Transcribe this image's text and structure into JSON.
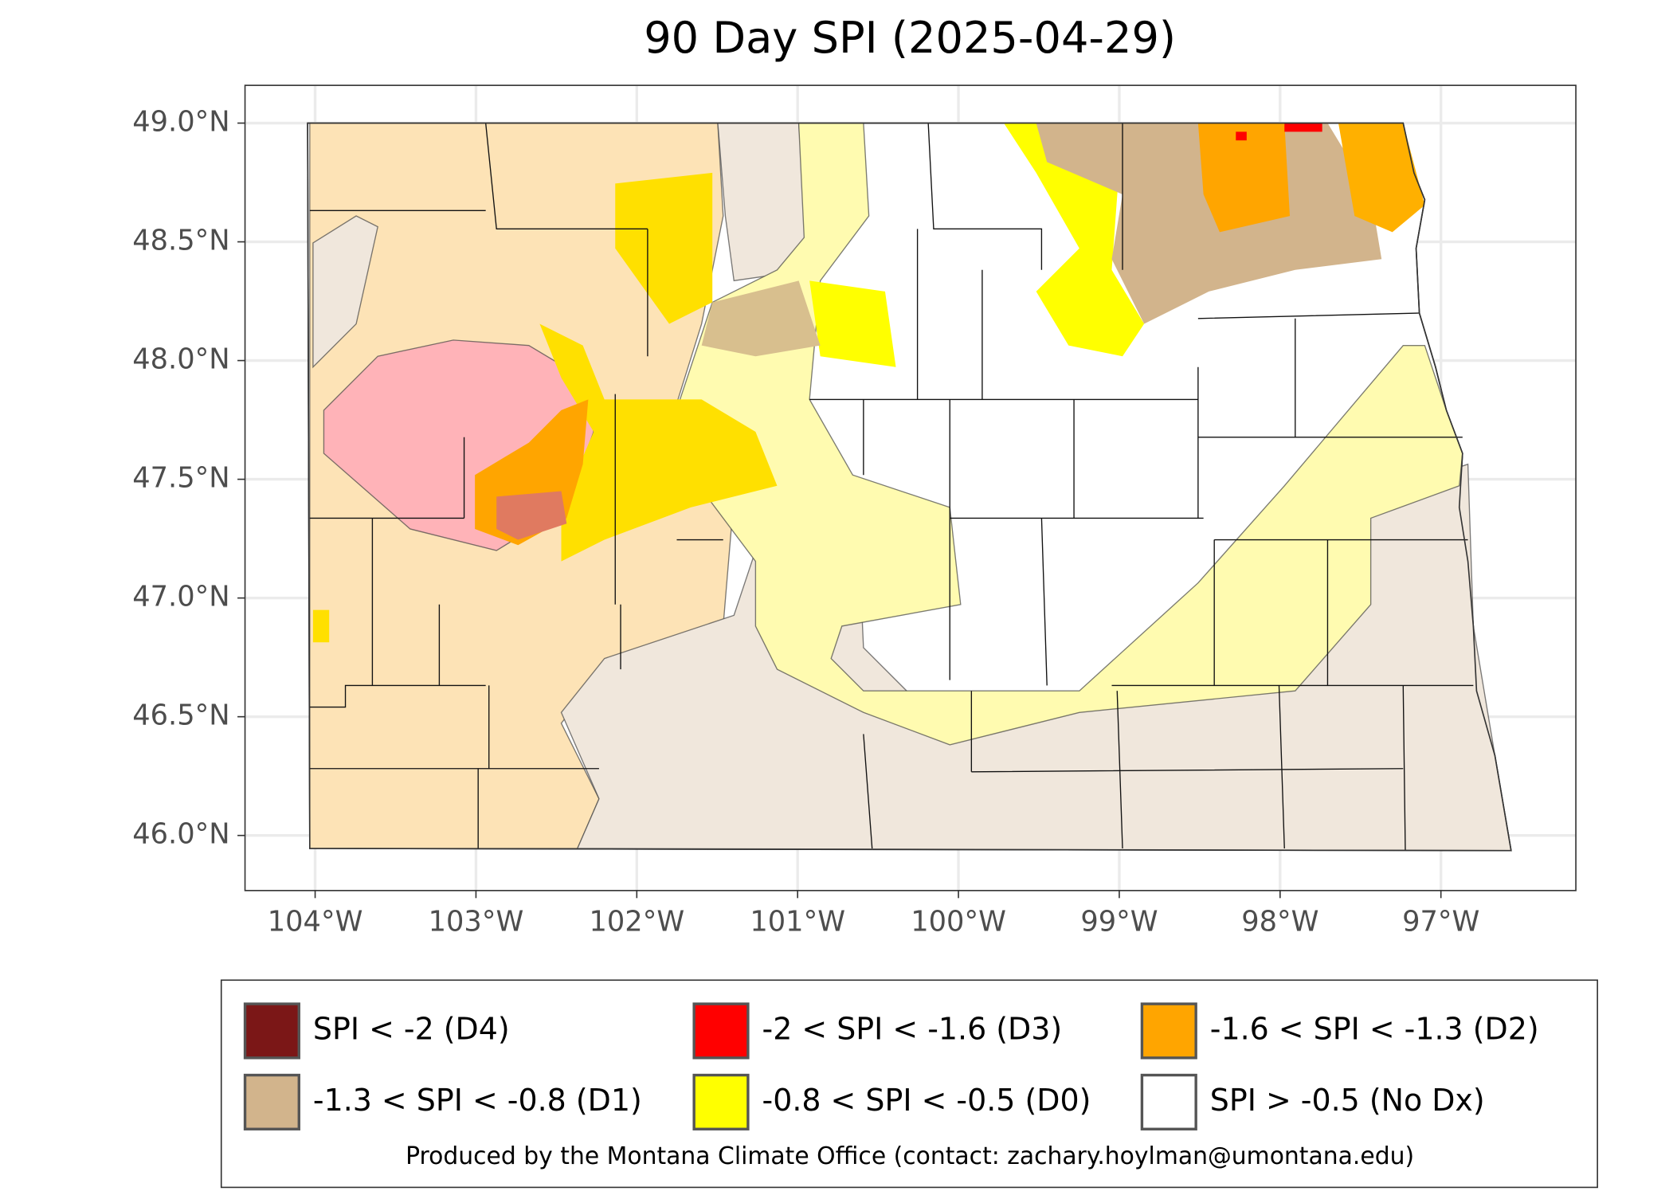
{
  "chart_data": {
    "type": "map",
    "title": "90 Day SPI (2025-04-29)",
    "xlim": [
      -104.436,
      -96.161
    ],
    "ylim": [
      45.768,
      49.159
    ],
    "xticks": [
      {
        "value": -104,
        "label": "104°W"
      },
      {
        "value": -103,
        "label": "103°W"
      },
      {
        "value": -102,
        "label": "102°W"
      },
      {
        "value": -101,
        "label": "101°W"
      },
      {
        "value": -100,
        "label": "100°W"
      },
      {
        "value": -99,
        "label": "99°W"
      },
      {
        "value": -98,
        "label": "98°W"
      },
      {
        "value": -97,
        "label": "97°W"
      }
    ],
    "yticks": [
      {
        "value": 46.0,
        "label": "46.0°N"
      },
      {
        "value": 46.5,
        "label": "46.5°N"
      },
      {
        "value": 47.0,
        "label": "47.0°N"
      },
      {
        "value": 47.5,
        "label": "47.5°N"
      },
      {
        "value": 48.0,
        "label": "48.0°N"
      },
      {
        "value": 48.5,
        "label": "48.5°N"
      },
      {
        "value": 49.0,
        "label": "49.0°N"
      }
    ],
    "grid": true,
    "legend": [
      {
        "label": "SPI < -2 (D4)",
        "color": "#7b1717"
      },
      {
        "label": "-2 < SPI < -1.6 (D3)",
        "color": "#ff0000"
      },
      {
        "label": "-1.6 < SPI < -1.3 (D2)",
        "color": "#ffa500"
      },
      {
        "label": "-1.3 < SPI < -0.8 (D1)",
        "color": "#d2b48c"
      },
      {
        "label": "-0.8 < SPI < -0.5 (D0)",
        "color": "#ffff00"
      },
      {
        "label": "SPI > -0.5 (No Dx)",
        "color": "#ffffff"
      }
    ],
    "credit": "Produced by the Montana Climate Office (contact: zachary.hoylman@umontana.edu)"
  }
}
